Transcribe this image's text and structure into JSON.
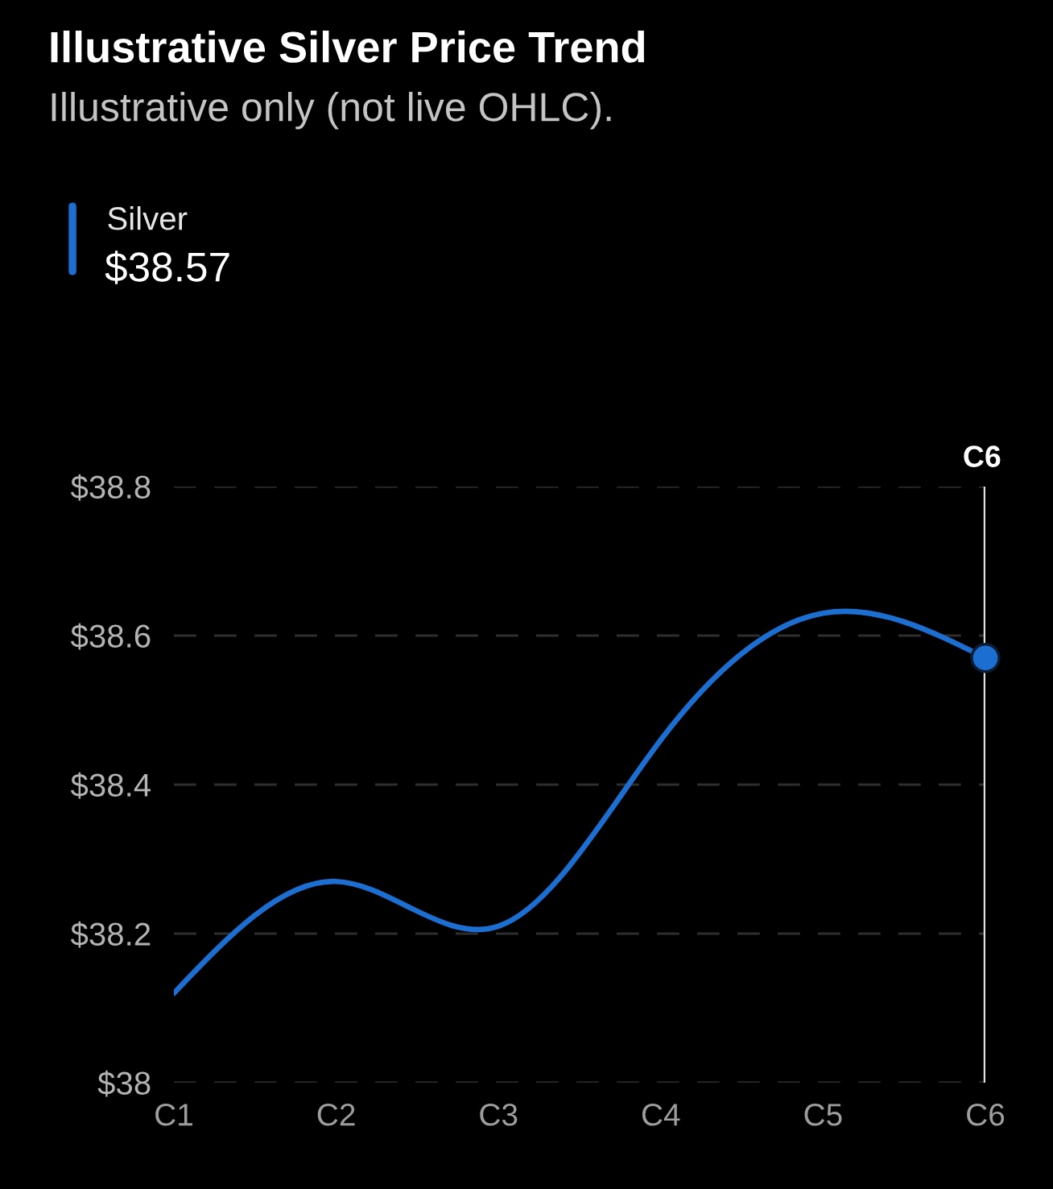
{
  "chart_data": {
    "type": "line",
    "title": "Illustrative Silver Price Trend",
    "subtitle": "Illustrative only (not live OHLC).",
    "categories": [
      "C1",
      "C2",
      "C3",
      "C4",
      "C5",
      "C6"
    ],
    "series": [
      {
        "name": "Silver",
        "color": "#1c6fd0",
        "values": [
          38.12,
          38.27,
          38.21,
          38.46,
          38.63,
          38.57
        ]
      },
      {
        "type": "scatter",
        "x": [
          "C6"
        ],
        "values": [
          38.57
        ],
        "color": "#1c6fd0",
        "marker": "circle"
      }
    ],
    "ylim": [
      38,
      38.8
    ],
    "yticks": [
      {
        "value": 38,
        "label": "$38"
      },
      {
        "value": 38.2,
        "label": "$38.2"
      },
      {
        "value": 38.4,
        "label": "$38.4"
      },
      {
        "value": 38.6,
        "label": "$38.6"
      },
      {
        "value": 38.8,
        "label": "$38.8"
      }
    ],
    "grid": "y",
    "legend": "top left",
    "ref_lines": [
      {
        "axis": "x",
        "value": "C6",
        "label": "C6",
        "color": "#e0e0e0"
      }
    ],
    "annotations": [
      "$38.57"
    ]
  }
}
